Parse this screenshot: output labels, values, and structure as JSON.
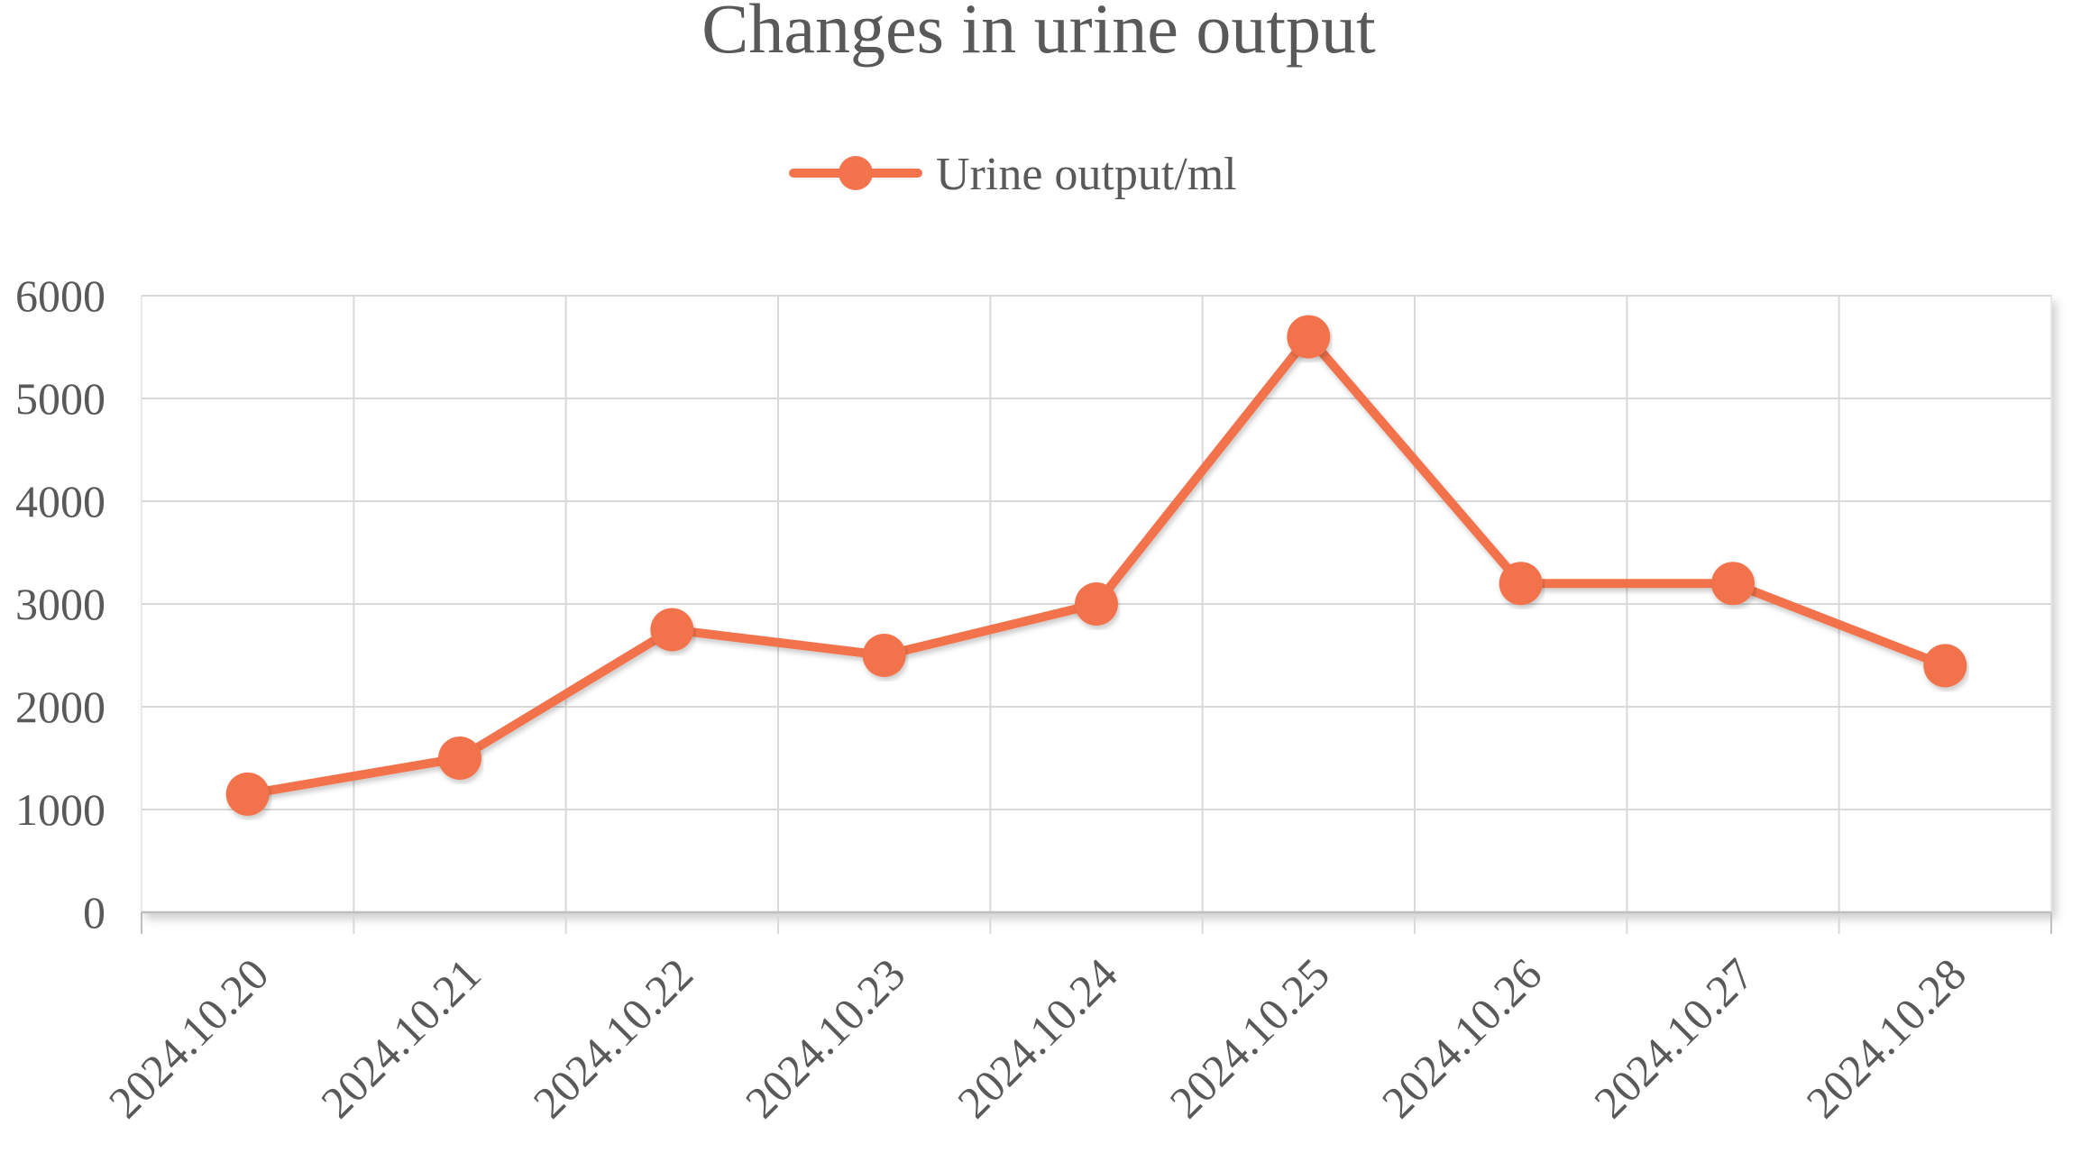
{
  "chart_data": {
    "type": "line",
    "title": "Changes in urine output",
    "categories": [
      "2024.10.20",
      "2024.10.21",
      "2024.10.22",
      "2024.10.23",
      "2024.10.24",
      "2024.10.25",
      "2024.10.26",
      "2024.10.27",
      "2024.10.28"
    ],
    "series": [
      {
        "name": "Urine output/ml",
        "values": [
          1150,
          1500,
          2750,
          2500,
          3000,
          5600,
          3200,
          3200,
          2400
        ],
        "color": "#F2734C"
      }
    ],
    "ylim": [
      0,
      6000
    ],
    "yticks": [
      0,
      1000,
      2000,
      3000,
      4000,
      5000,
      6000
    ],
    "xlabel": "",
    "ylabel": "",
    "grid": true,
    "legend_position": "top"
  }
}
